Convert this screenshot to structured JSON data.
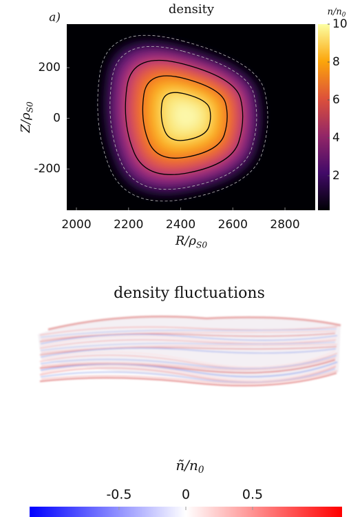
{
  "chart_data": [
    {
      "type": "heatmap",
      "title": "density",
      "panel_label": "a)",
      "x_label": {
        "main": "R/ρ",
        "sub": "S0"
      },
      "y_label": {
        "main": "Z/ρ",
        "sub": "S0"
      },
      "colorbar_label": {
        "main": "n/n",
        "sub": "0"
      },
      "xlim": [
        1963,
        2916
      ],
      "ylim": [
        -363,
        372
      ],
      "xticks": [
        2000,
        2200,
        2400,
        2600,
        2800
      ],
      "yticks": [
        -200,
        0,
        200
      ],
      "clim": [
        0.18,
        10
      ],
      "cticks": [
        2,
        4,
        6,
        8,
        10
      ],
      "colormap": "inferno"
    },
    {
      "type": "render3d",
      "title": "density fluctuations",
      "colorbar_label": {
        "main": "ñ/n",
        "sub": "0"
      },
      "clim": [
        -1.17,
        1.17
      ],
      "cticks": [
        -0.5,
        0,
        0.5
      ],
      "colormap": "bwr"
    }
  ]
}
